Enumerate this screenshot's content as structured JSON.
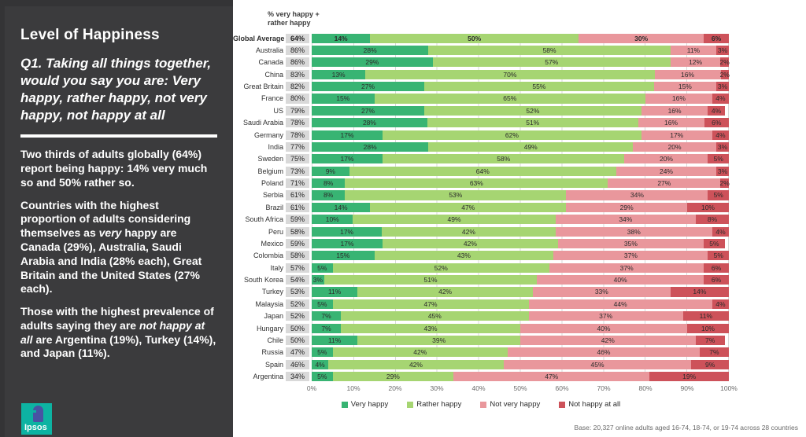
{
  "sidebar": {
    "title": "Level of Happiness",
    "question": "Q1. Taking all things together, would you say you are: Very happy, rather happy, not very happy, not happy at all",
    "paragraphs": [
      [
        {
          "t": "Two thirds of adults globally (64%) report being happy: 14% very much so and 50% rather so."
        }
      ],
      [
        {
          "t": "Countries with the highest proportion of adults considering themselves as "
        },
        {
          "t": "very",
          "i": true
        },
        {
          "t": " happy are Canada (29%), Australia, Saudi Arabia and India (28% each), Great Britain and the United States (27% each)."
        }
      ],
      [
        {
          "t": "Those with the highest prevalence of adults saying they are "
        },
        {
          "t": "not happy at all",
          "i": true
        },
        {
          "t": " are Argentina (19%), Turkey (14%), and Japan (11%)."
        }
      ]
    ],
    "logo_text": "Ipsos"
  },
  "chart": {
    "header": "% very happy +\nrather happy"
  },
  "chart_data": {
    "type": "bar",
    "orientation": "horizontal",
    "stacked": true,
    "title": "% very happy + rather happy",
    "categories": [
      "Global Average",
      "Australia",
      "Canada",
      "China",
      "Great Britain",
      "France",
      "US",
      "Saudi Arabia",
      "Germany",
      "India",
      "Sweden",
      "Belgium",
      "Poland",
      "Serbia",
      "Brazil",
      "South Africa",
      "Peru",
      "Mexico",
      "Colombia",
      "Italy",
      "South Korea",
      "Turkey",
      "Malaysia",
      "Japan",
      "Hungary",
      "Chile",
      "Russia",
      "Spain",
      "Argentina"
    ],
    "totals": [
      64,
      86,
      86,
      83,
      82,
      80,
      79,
      78,
      78,
      77,
      75,
      73,
      71,
      61,
      61,
      59,
      58,
      59,
      58,
      57,
      54,
      53,
      52,
      52,
      50,
      50,
      47,
      46,
      34
    ],
    "series": [
      {
        "name": "Very happy",
        "color": "#38b473",
        "values": [
          14,
          28,
          29,
          13,
          27,
          15,
          27,
          28,
          17,
          28,
          17,
          9,
          8,
          8,
          14,
          10,
          17,
          17,
          15,
          5,
          3,
          11,
          5,
          7,
          7,
          11,
          5,
          4,
          5
        ]
      },
      {
        "name": "Rather happy",
        "color": "#a6d572",
        "values": [
          50,
          58,
          57,
          70,
          55,
          65,
          52,
          51,
          62,
          49,
          58,
          64,
          63,
          53,
          47,
          49,
          42,
          42,
          43,
          52,
          51,
          42,
          47,
          45,
          43,
          39,
          42,
          42,
          29
        ]
      },
      {
        "name": "Not very happy",
        "color": "#e9979c",
        "values": [
          30,
          11,
          12,
          16,
          15,
          16,
          16,
          16,
          17,
          20,
          20,
          24,
          27,
          34,
          29,
          34,
          38,
          35,
          37,
          37,
          40,
          33,
          44,
          37,
          40,
          42,
          46,
          45,
          47
        ]
      },
      {
        "name": "Not happy at all",
        "color": "#cd525a",
        "values": [
          6,
          3,
          2,
          2,
          3,
          4,
          4,
          6,
          4,
          3,
          5,
          3,
          2,
          5,
          10,
          8,
          4,
          5,
          5,
          6,
          6,
          14,
          4,
          11,
          10,
          7,
          7,
          9,
          19
        ]
      }
    ],
    "xlim": [
      0,
      100
    ],
    "x_ticks": [
      "0%",
      "10%",
      "20%",
      "30%",
      "40%",
      "50%",
      "60%",
      "70%",
      "80%",
      "90%",
      "100%"
    ],
    "grid": true,
    "legend_position": "bottom",
    "base_note": "Base: 20,327 online adults aged 16-74, 18-74, or 19-74 across 28 countries"
  }
}
